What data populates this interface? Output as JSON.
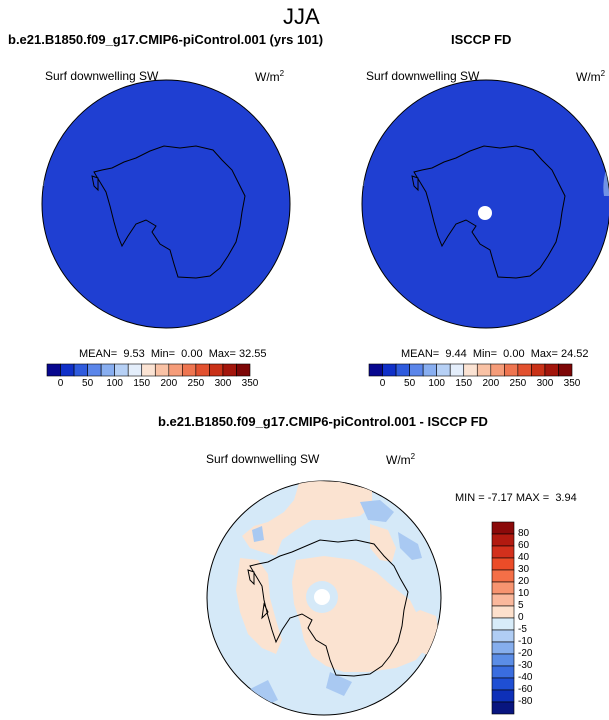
{
  "figure": {
    "title": "JJA"
  },
  "panels": {
    "model": {
      "title": "b.e21.B1850.f09_g17.CMIP6-piControl.001 (yrs 101)",
      "variable": "Surf downwelling SW",
      "units": "W/m",
      "units_sup": "2",
      "stats": {
        "mean_label": "MEAN=",
        "mean": "9.53",
        "min_label": "Min=",
        "min": "0.00",
        "max_label": "Max=",
        "max": "32.55"
      }
    },
    "obs": {
      "title": "ISCCP FD",
      "variable": "Surf downwelling SW",
      "units": "W/m",
      "units_sup": "2",
      "stats": {
        "mean_label": "MEAN=",
        "mean": "9.44",
        "min_label": "Min=",
        "min": "0.00",
        "max_label": "Max=",
        "max": "24.52"
      }
    },
    "diff": {
      "title": "b.e21.B1850.f09_g17.CMIP6-piControl.001 - ISCCP FD",
      "variable": "Surf downwelling SW",
      "units": "W/m",
      "units_sup": "2",
      "stats": {
        "min_label": "MIN =",
        "min": "-7.17",
        "max_label": "MAX =",
        "max": "3.94"
      }
    }
  },
  "colorbars": {
    "abs_labels": [
      "0",
      "50",
      "100",
      "150",
      "200",
      "250",
      "300",
      "350"
    ],
    "abs_colors": [
      "#08088f",
      "#1030c8",
      "#2f5bdd",
      "#5b86ea",
      "#88aef0",
      "#b6d0f5",
      "#e4eefb",
      "#fbe3d3",
      "#f9c2a5",
      "#f59c79",
      "#ee7550",
      "#e2512f",
      "#c93117",
      "#a3150b",
      "#7d0606"
    ],
    "diff_labels": [
      "80",
      "60",
      "40",
      "30",
      "20",
      "10",
      "5",
      "0",
      "-5",
      "-10",
      "-20",
      "-30",
      "-40",
      "-60",
      "-80"
    ],
    "diff_colors": [
      "#8b0a0a",
      "#b21a10",
      "#d3301c",
      "#eb4c28",
      "#f46f47",
      "#f79470",
      "#fab89c",
      "#fde0cc",
      "#d8ecf9",
      "#b0cdf4",
      "#86aeed",
      "#5b8de6",
      "#3a6ddf",
      "#1f4fd3",
      "#0e30b8",
      "#08157f"
    ],
    "colors": {
      "uniform_field": "#1f3fd2",
      "diff_ocean": "#d5e9f8",
      "diff_positive": "#fbe3d1",
      "diff_negative": "#a9c9f2",
      "pole_mask": "#ffffff"
    }
  }
}
